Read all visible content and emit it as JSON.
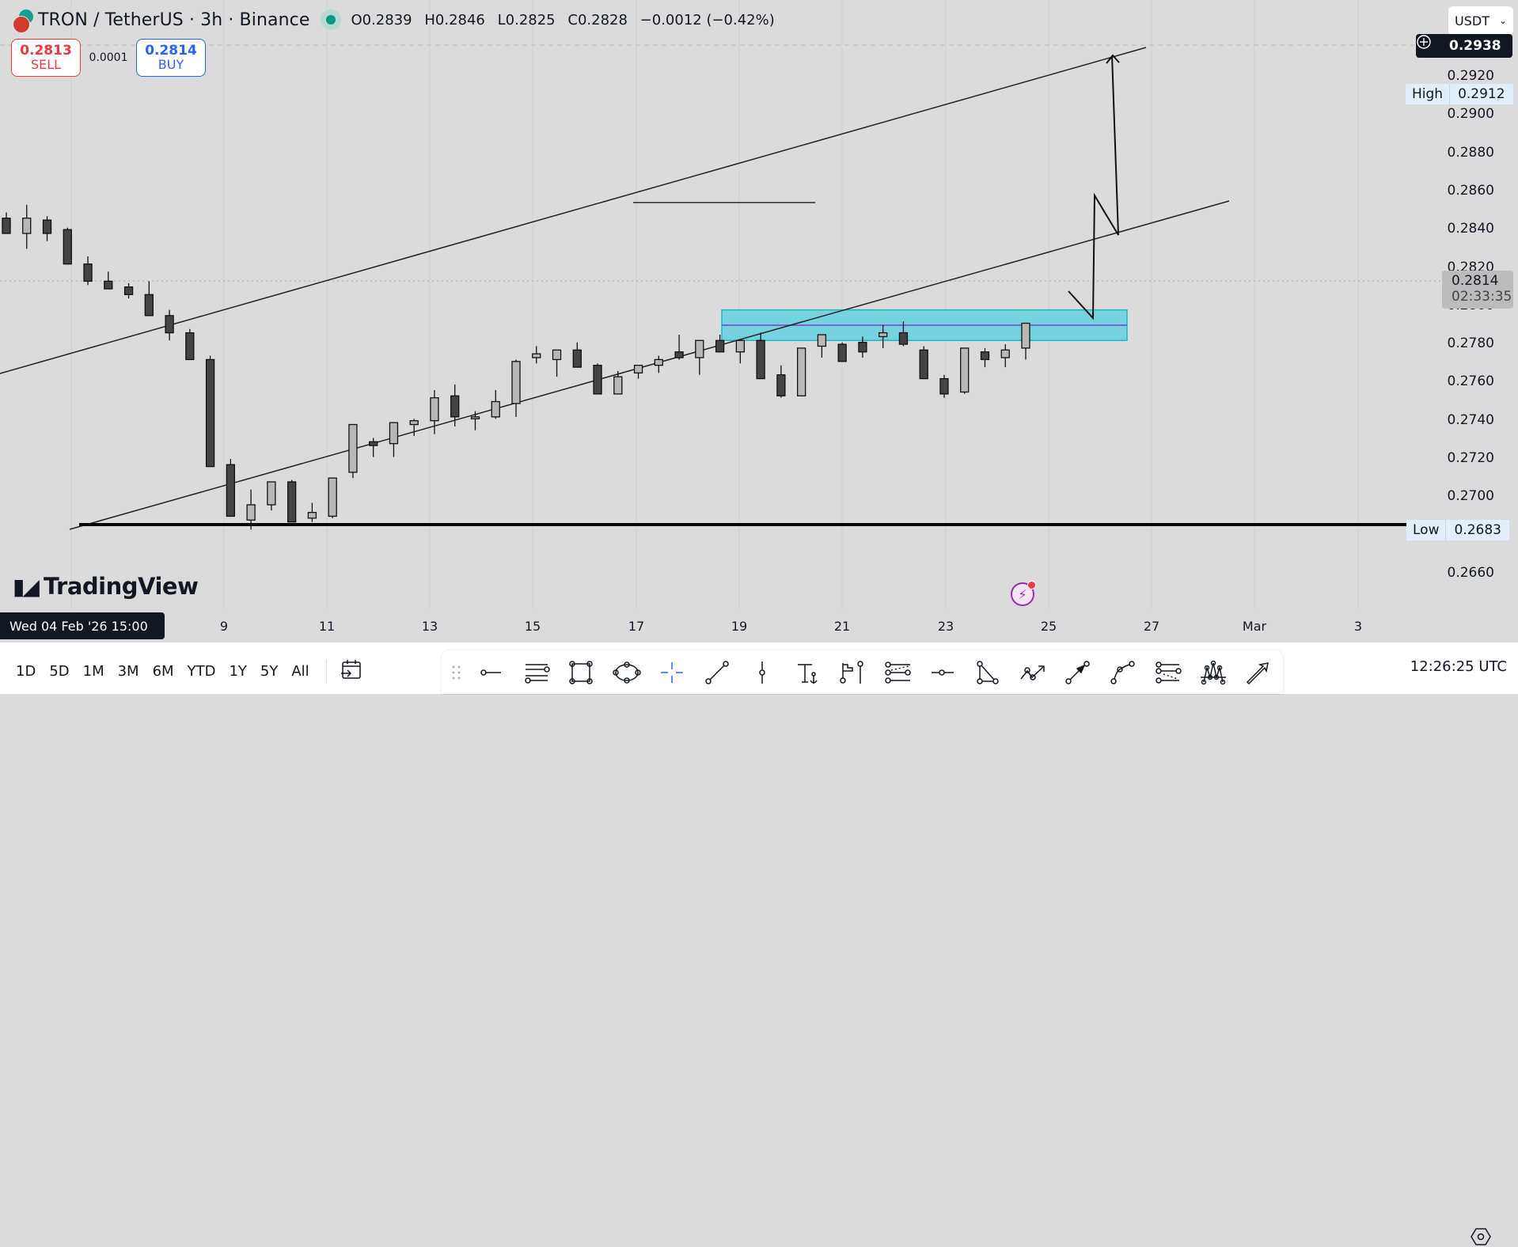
{
  "legend": {
    "symbol": "TRON / TetherUS · 3h · Binance",
    "open_label": "O",
    "open": "0.2839",
    "high_label": "H",
    "high": "0.2846",
    "low_label": "L",
    "low": "0.2825",
    "close_label": "C",
    "close": "0.2828",
    "change": "−0.0012 (−0.42%)",
    "status_color": "#089981"
  },
  "trade": {
    "sell_price": "0.2813",
    "sell_label": "SELL",
    "spread": "0.0001",
    "buy_price": "0.2814",
    "buy_label": "BUY",
    "sell_color": "#f23645",
    "buy_color": "#2962ff"
  },
  "currency_select": {
    "value": "USDT"
  },
  "price_axis": {
    "ticks": [
      "0.2920",
      "0.2900",
      "0.2880",
      "0.2860",
      "0.2840",
      "0.2820",
      "0.2800",
      "0.2780",
      "0.2760",
      "0.2740",
      "0.2720",
      "0.2700",
      "0.2660"
    ],
    "crosshair_price": "0.2938",
    "high_label": "High",
    "high_value": "0.2912",
    "low_label": "Low",
    "low_value": "0.2683",
    "last_price": "0.2814",
    "countdown": "02:33:35"
  },
  "time_axis": {
    "cursor_label": "Wed 04 Feb '26   15:00",
    "ticks": [
      "9",
      "11",
      "13",
      "15",
      "17",
      "19",
      "21",
      "23",
      "25",
      "27",
      "Mar",
      "3"
    ]
  },
  "branding": {
    "logo_text": "TradingView"
  },
  "range_buttons": [
    "1D",
    "5D",
    "1M",
    "3M",
    "6M",
    "YTD",
    "1Y",
    "5Y",
    "All"
  ],
  "drawing_tools": [
    {
      "name": "ray-tool-icon"
    },
    {
      "name": "parallel-channel-icon"
    },
    {
      "name": "rectangle-tool-icon"
    },
    {
      "name": "ellipse-tool-icon"
    },
    {
      "name": "crosshair-tool-icon"
    },
    {
      "name": "trend-line-icon"
    },
    {
      "name": "vertical-line-icon"
    },
    {
      "name": "anchored-text-icon"
    },
    {
      "name": "flag-pin-icon"
    },
    {
      "name": "fib-retracement-icon"
    },
    {
      "name": "horizontal-ray-icon"
    },
    {
      "name": "triangle-pattern-icon"
    },
    {
      "name": "path-arrow-icon"
    },
    {
      "name": "arrow-marker-icon"
    },
    {
      "name": "curve-tool-icon"
    },
    {
      "name": "fib-channel-icon"
    },
    {
      "name": "head-shoulders-icon"
    },
    {
      "name": "arrow-tool-icon"
    }
  ],
  "clock": "12:26:25 UTC",
  "chart_data": {
    "type": "candlestick",
    "title": "TRON / TetherUS · 3h · Binance",
    "ylim": [
      0.265,
      0.2945
    ],
    "x_ticks": [
      "9",
      "11",
      "13",
      "15",
      "17",
      "19",
      "21",
      "23",
      "25",
      "27",
      "Mar",
      "3"
    ],
    "annotations": {
      "high": 0.2912,
      "low": 0.2683,
      "demand_zone": [
        0.2782,
        0.2798
      ],
      "zone_midline": 0.279,
      "last_price": 0.2814
    },
    "candles": [
      [
        0.2846,
        0.2849,
        0.2838,
        0.2838
      ],
      [
        0.2838,
        0.2853,
        0.283,
        0.2846
      ],
      [
        0.2845,
        0.2847,
        0.2834,
        0.2838
      ],
      [
        0.284,
        0.2841,
        0.2822,
        0.2822
      ],
      [
        0.2822,
        0.2826,
        0.2811,
        0.2813
      ],
      [
        0.2813,
        0.2818,
        0.281,
        0.2809
      ],
      [
        0.281,
        0.2812,
        0.2804,
        0.2806
      ],
      [
        0.2806,
        0.2813,
        0.2795,
        0.2795
      ],
      [
        0.2795,
        0.2798,
        0.2782,
        0.2786
      ],
      [
        0.2786,
        0.2788,
        0.2772,
        0.2772
      ],
      [
        0.2772,
        0.2774,
        0.2716,
        0.2716
      ],
      [
        0.2717,
        0.272,
        0.269,
        0.269
      ],
      [
        0.2688,
        0.2704,
        0.2683,
        0.2696
      ],
      [
        0.2696,
        0.2708,
        0.2693,
        0.2708
      ],
      [
        0.2708,
        0.2709,
        0.2687,
        0.2687
      ],
      [
        0.2689,
        0.2697,
        0.2687,
        0.2692
      ],
      [
        0.269,
        0.271,
        0.2689,
        0.271
      ],
      [
        0.2713,
        0.2728,
        0.271,
        0.2738
      ],
      [
        0.2729,
        0.2731,
        0.2721,
        0.2727
      ],
      [
        0.2728,
        0.2733,
        0.2721,
        0.2739
      ],
      [
        0.2738,
        0.2741,
        0.2732,
        0.274
      ],
      [
        0.274,
        0.2756,
        0.2733,
        0.2752
      ],
      [
        0.2753,
        0.2759,
        0.2737,
        0.2742
      ],
      [
        0.2741,
        0.2745,
        0.2735,
        0.2742
      ],
      [
        0.2742,
        0.2756,
        0.2741,
        0.275
      ],
      [
        0.2749,
        0.2772,
        0.2742,
        0.2771
      ],
      [
        0.2773,
        0.2779,
        0.277,
        0.2775
      ],
      [
        0.2772,
        0.2777,
        0.2763,
        0.2777
      ],
      [
        0.2777,
        0.2781,
        0.277,
        0.2768
      ],
      [
        0.2769,
        0.277,
        0.2754,
        0.2754
      ],
      [
        0.2754,
        0.2766,
        0.2754,
        0.2763
      ],
      [
        0.2765,
        0.2769,
        0.2762,
        0.2769
      ],
      [
        0.2769,
        0.2774,
        0.2765,
        0.2772
      ],
      [
        0.2776,
        0.2785,
        0.2772,
        0.2773
      ],
      [
        0.2773,
        0.2779,
        0.2764,
        0.2782
      ],
      [
        0.2782,
        0.2785,
        0.2776,
        0.2776
      ],
      [
        0.2776,
        0.2782,
        0.277,
        0.2782
      ],
      [
        0.2782,
        0.2786,
        0.2769,
        0.2762
      ],
      [
        0.2764,
        0.2769,
        0.2752,
        0.2753
      ],
      [
        0.2753,
        0.2776,
        0.2754,
        0.2778
      ],
      [
        0.2779,
        0.2782,
        0.2773,
        0.2785
      ],
      [
        0.278,
        0.2781,
        0.2773,
        0.2771
      ],
      [
        0.2781,
        0.2784,
        0.2773,
        0.2776
      ],
      [
        0.2784,
        0.279,
        0.2778,
        0.2786
      ],
      [
        0.2786,
        0.2792,
        0.2779,
        0.278
      ],
      [
        0.2777,
        0.2779,
        0.2762,
        0.2762
      ],
      [
        0.2762,
        0.2764,
        0.2752,
        0.2754
      ],
      [
        0.2755,
        0.2778,
        0.2754,
        0.2778
      ],
      [
        0.2776,
        0.2778,
        0.2768,
        0.2772
      ],
      [
        0.2773,
        0.278,
        0.2768,
        0.2777
      ],
      [
        0.2778,
        0.2783,
        0.2772,
        0.2791
      ]
    ]
  }
}
